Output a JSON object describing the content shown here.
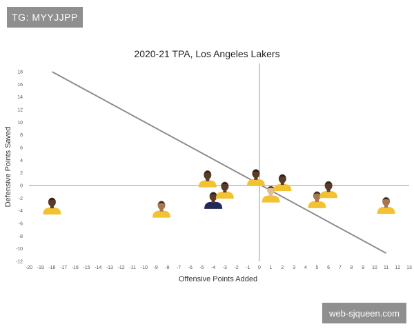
{
  "watermarks": {
    "top_left": "TG: MYYJJPP",
    "bottom_right": "web-sjqueen.com"
  },
  "colors": {
    "trend_line": "#8c8c8c",
    "zero_lines": "#9a9a9a",
    "jersey_gold": "#f2c233",
    "jersey_navy": "#1f2a5a",
    "skin_dark": "#5a3b28",
    "skin_medium": "#a8764f",
    "skin_light": "#e3bc98"
  },
  "chart_data": {
    "type": "scatter",
    "title": "2020-21 TPA, Los Angeles Lakers",
    "xlabel": "Offensive Points Added",
    "ylabel": "Defensive Points Saved",
    "xlim": [
      -20,
      13
    ],
    "ylim": [
      -12,
      18
    ],
    "xticks": [
      -20,
      -19,
      -18,
      -17,
      -16,
      -15,
      -14,
      -13,
      -12,
      -11,
      -10,
      -9,
      -8,
      -7,
      -6,
      -5,
      -4,
      -3,
      -2,
      -1,
      0,
      1,
      2,
      3,
      4,
      5,
      6,
      7,
      8,
      9,
      10,
      11,
      12,
      13
    ],
    "yticks": [
      -12,
      -10,
      -8,
      -6,
      -4,
      -2,
      0,
      2,
      4,
      6,
      8,
      10,
      12,
      14,
      16,
      18
    ],
    "grid": false,
    "legend": "none",
    "trend_line": {
      "x": [
        -18,
        11
      ],
      "y": [
        18,
        -10.7
      ]
    },
    "points": [
      {
        "x": -18,
        "y": -3.5,
        "marker": "player-photo",
        "jersey": "gold",
        "skin": "dark"
      },
      {
        "x": -8.5,
        "y": -4.0,
        "marker": "player-photo",
        "jersey": "gold",
        "skin": "medium"
      },
      {
        "x": -4.5,
        "y": 0.8,
        "marker": "player-photo",
        "jersey": "gold",
        "skin": "dark"
      },
      {
        "x": -4.0,
        "y": -2.6,
        "marker": "player-photo",
        "jersey": "navy",
        "skin": "dark"
      },
      {
        "x": -3.0,
        "y": -1.0,
        "marker": "player-photo",
        "jersey": "gold",
        "skin": "dark"
      },
      {
        "x": -0.3,
        "y": 1.0,
        "marker": "player-photo",
        "jersey": "gold",
        "skin": "dark"
      },
      {
        "x": 1.0,
        "y": -1.6,
        "marker": "player-photo",
        "jersey": "gold",
        "skin": "light"
      },
      {
        "x": 2.0,
        "y": 0.2,
        "marker": "player-photo",
        "jersey": "gold",
        "skin": "dark"
      },
      {
        "x": 5.0,
        "y": -2.5,
        "marker": "player-photo",
        "jersey": "gold",
        "skin": "medium"
      },
      {
        "x": 6.0,
        "y": -0.9,
        "marker": "player-photo",
        "jersey": "gold",
        "skin": "dark"
      },
      {
        "x": 11.0,
        "y": -3.4,
        "marker": "player-photo",
        "jersey": "gold",
        "skin": "medium"
      }
    ]
  }
}
